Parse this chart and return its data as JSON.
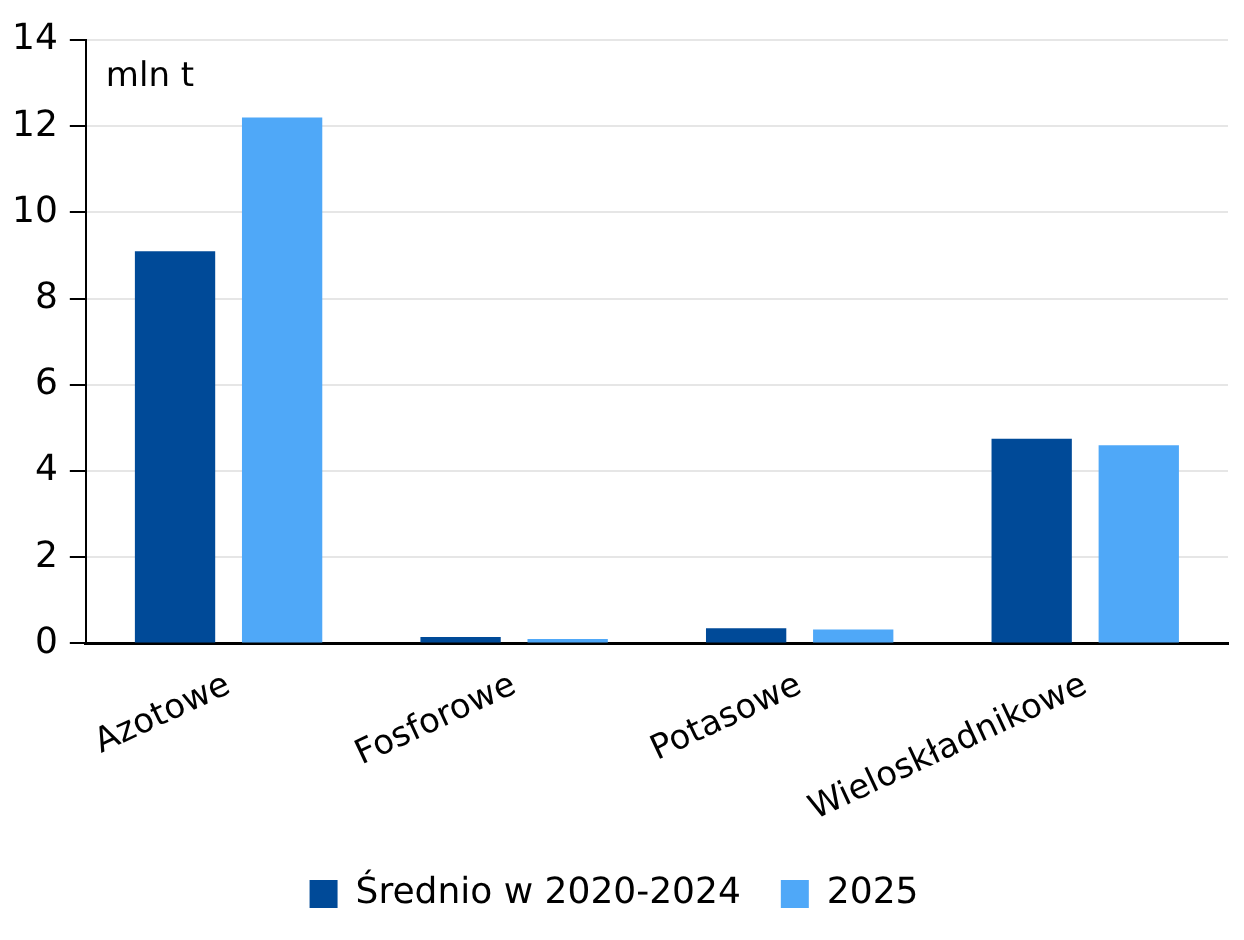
{
  "chart_data": {
    "type": "bar",
    "ylabel": "mln t",
    "categories": [
      "Azotowe",
      "Fosforowe",
      "Potasowe",
      "Wieloskładnikowe"
    ],
    "series": [
      {
        "name": "Średnio w 2020-2024",
        "color": "#004a98",
        "values": [
          9.1,
          0.15,
          0.35,
          4.75
        ]
      },
      {
        "name": "2025",
        "color": "#4fa8f8",
        "values": [
          12.2,
          0.1,
          0.32,
          4.6
        ]
      }
    ],
    "ylim": [
      0,
      14
    ],
    "yticks": [
      0,
      2,
      4,
      6,
      8,
      10,
      12,
      14
    ],
    "grid": "y",
    "legend": "bottom"
  }
}
